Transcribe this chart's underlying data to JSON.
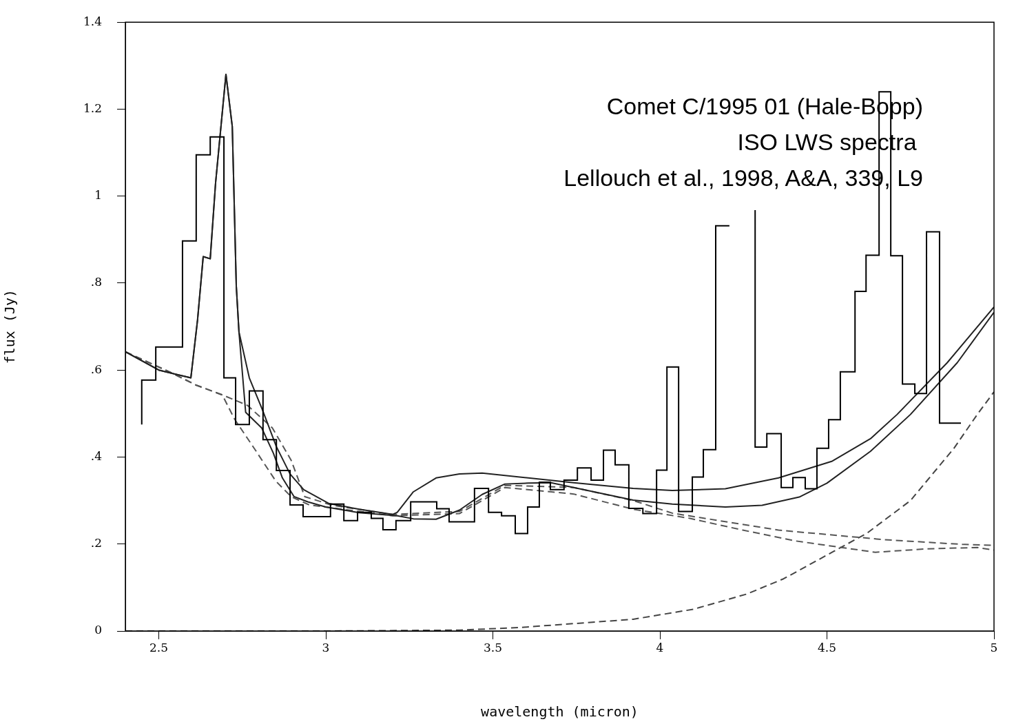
{
  "chart_data": {
    "type": "line",
    "xlabel": "wavelength (micron)",
    "ylabel": "flux (Jy)",
    "annotations": [
      "Comet C/1995 01 (Hale-Bopp)",
      "ISO LWS spectra ",
      "Lellouch et al., 1998, A&A, 339, L9"
    ],
    "xlim": [
      2.4,
      5
    ],
    "xticks": [
      2.5,
      3,
      3.5,
      4,
      4.5,
      5
    ],
    "ylim": [
      0,
      1.4
    ],
    "yticks": [
      0,
      {
        "value": 0.2,
        "label": ".2"
      },
      {
        "value": 0.4,
        "label": ".4"
      },
      {
        "value": 0.6,
        "label": ".6"
      },
      {
        "value": 0.8,
        "label": ".8"
      },
      1,
      1.2,
      1.4
    ],
    "marker": "none",
    "series": [
      {
        "type": "step",
        "color": "#000000",
        "line_style": "solid",
        "x": [
          2.449,
          2.491,
          2.571,
          2.612,
          2.654,
          2.695,
          2.73,
          2.771,
          2.812,
          2.852,
          2.893,
          2.932,
          3.014,
          3.054,
          3.095,
          3.136,
          3.171,
          3.21,
          3.254,
          3.332,
          3.369,
          3.445,
          3.487,
          3.526,
          3.567,
          3.604,
          3.639,
          3.672,
          3.713,
          3.753,
          3.794,
          3.831,
          3.866,
          3.907,
          3.949,
          3.99,
          4.021,
          4.056,
          4.097,
          4.13,
          4.167,
          4.208,
          4.252,
          4.285,
          4.32,
          4.363,
          4.398,
          4.435,
          4.47,
          4.505,
          4.54,
          4.584,
          4.617,
          4.656,
          4.691,
          4.726,
          4.763,
          4.798,
          4.837,
          4.874,
          4.901
        ],
        "values": [
          0.475,
          0.577,
          0.653,
          0.897,
          1.095,
          1.136,
          0.582,
          0.475,
          0.552,
          0.44,
          0.369,
          0.29,
          0.263,
          0.292,
          0.254,
          0.273,
          0.259,
          0.233,
          0.254,
          0.297,
          0.281,
          0.251,
          0.328,
          0.273,
          0.265,
          0.224,
          0.285,
          0.342,
          0.325,
          0.347,
          0.375,
          0.347,
          0.416,
          0.382,
          0.282,
          0.27,
          0.37,
          0.607,
          0.275,
          0.354,
          0.417,
          0.932,
          null,
          0.968,
          0.423,
          0.454,
          0.33,
          0.353,
          0.327,
          0.42,
          0.486,
          0.596,
          0.781,
          0.864,
          1.24,
          0.863,
          0.568,
          0.546,
          0.918,
          0.478,
          0.478
        ]
      },
      {
        "color": "#222222",
        "line_style": "solid",
        "x": [
          2.4,
          2.5,
          2.596,
          2.616,
          2.633,
          2.654,
          2.67,
          2.701,
          2.72,
          2.732,
          2.74,
          2.771,
          2.81,
          2.852,
          2.893,
          2.934,
          3.01,
          3.1,
          3.2,
          3.214,
          3.262,
          3.33,
          3.4,
          3.468,
          3.606,
          3.742,
          3.92,
          4.037,
          4.196,
          4.355,
          4.514,
          4.63,
          4.71,
          4.86,
          5.0
        ],
        "values": [
          0.642,
          0.6,
          0.582,
          0.715,
          0.861,
          0.856,
          1.03,
          1.28,
          1.16,
          0.793,
          0.688,
          0.582,
          0.509,
          0.424,
          0.361,
          0.325,
          0.293,
          0.28,
          0.268,
          0.273,
          0.32,
          0.352,
          0.361,
          0.363,
          0.352,
          0.341,
          0.328,
          0.323,
          0.327,
          0.352,
          0.39,
          0.442,
          0.498,
          0.617,
          0.745
        ]
      },
      {
        "color": "#222222",
        "line_style": "solid",
        "x": [
          2.4,
          2.5,
          2.596,
          2.616,
          2.633,
          2.654,
          2.67,
          2.701,
          2.72,
          2.732,
          2.74,
          2.76,
          2.808,
          2.843,
          2.87,
          2.905,
          2.946,
          3.0,
          3.1,
          3.214,
          3.262,
          3.33,
          3.4,
          3.468,
          3.536,
          3.606,
          3.674,
          3.742,
          3.92,
          4.037,
          4.196,
          4.306,
          4.417,
          4.5,
          4.63,
          4.75,
          4.89,
          5.0
        ],
        "values": [
          0.642,
          0.6,
          0.582,
          0.715,
          0.861,
          0.856,
          1.03,
          1.28,
          1.16,
          0.793,
          0.688,
          0.503,
          0.467,
          0.409,
          0.352,
          0.309,
          0.297,
          0.285,
          0.272,
          0.265,
          0.258,
          0.257,
          0.278,
          0.314,
          0.338,
          0.34,
          0.341,
          0.33,
          0.301,
          0.292,
          0.285,
          0.289,
          0.308,
          0.34,
          0.413,
          0.498,
          0.617,
          0.733
        ]
      },
      {
        "color": "#555555",
        "line_style": "dashed",
        "x": [
          2.4,
          2.54,
          2.61,
          2.69,
          2.765,
          2.84,
          2.896,
          2.937,
          3.02,
          3.2,
          3.4,
          3.536,
          3.742,
          3.92,
          4.037,
          4.355,
          4.672,
          4.91,
          5.0
        ],
        "values": [
          0.642,
          0.593,
          0.566,
          0.543,
          0.519,
          0.467,
          0.393,
          0.309,
          0.289,
          0.268,
          0.275,
          0.335,
          0.33,
          0.3,
          0.271,
          0.232,
          0.21,
          0.199,
          0.197
        ]
      },
      {
        "color": "#555555",
        "line_style": "dashed",
        "x": [
          2.4,
          2.54,
          2.61,
          2.69,
          2.727,
          2.79,
          2.85,
          2.896,
          2.95,
          3.2,
          3.4,
          3.536,
          3.742,
          3.92,
          4.09,
          4.248,
          4.407,
          4.645,
          4.8,
          4.95,
          5.0
        ],
        "values": [
          0.642,
          0.593,
          0.566,
          0.543,
          0.487,
          0.415,
          0.345,
          0.309,
          0.29,
          0.265,
          0.27,
          0.33,
          0.315,
          0.28,
          0.259,
          0.232,
          0.207,
          0.181,
          0.189,
          0.192,
          0.186
        ]
      },
      {
        "color": "#444444",
        "line_style": "dashed",
        "x": [
          2.4,
          3.0,
          3.4,
          3.58,
          3.92,
          4.1,
          4.26,
          4.37,
          4.52,
          4.62,
          4.75,
          4.88,
          4.95,
          5.0
        ],
        "values": [
          0,
          0,
          0.002,
          0.008,
          0.027,
          0.05,
          0.085,
          0.12,
          0.183,
          0.225,
          0.3,
          0.42,
          0.498,
          0.55
        ]
      }
    ]
  }
}
